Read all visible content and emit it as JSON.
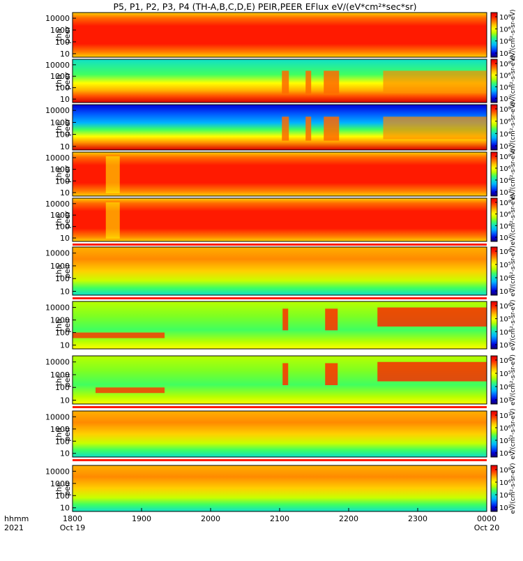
{
  "title": "P5, P1, P2, P3, P4 (TH-A,B,C,D,E) PEIR,PEER EFlux eV/(eV*cm²*sec*sr)",
  "colors": {
    "palette": [
      "#16006e",
      "#0000d8",
      "#0058ff",
      "#00b4ff",
      "#10e0c8",
      "#40ff60",
      "#b8ff00",
      "#ffff00",
      "#ffc000",
      "#ff6a00",
      "#ff1a00",
      "#d80000"
    ],
    "separator_red": "#ff1a00",
    "frame": "#000000"
  },
  "chart_data": {
    "type": "heatmap",
    "time_axis": {
      "label_row1": "hhmm",
      "label_row2": "2021",
      "ticks": [
        "1800",
        "1900",
        "2000",
        "2100",
        "2200",
        "2300",
        "0000"
      ],
      "date_under_first": "Oct 19",
      "date_under_last": "Oct 20",
      "range": [
        "2021-10-19 18:00",
        "2021-10-20 00:00"
      ]
    },
    "energy_axis": {
      "scale": "log",
      "range": [
        5,
        30000
      ],
      "ticks": [
        "10000",
        "1000",
        "100",
        "10"
      ]
    },
    "panels": [
      {
        "probe": "tha",
        "product": "peer",
        "ylabel": [
          "tha",
          "peer"
        ],
        "zticks": [
          "10⁸",
          "10⁶",
          "10⁴",
          "10²"
        ],
        "cbar_label": "eV/(cm²-s-sr-eV)",
        "separator_below": false,
        "features": [
          {
            "band": "high flux across 10–1000 eV, broad red core",
            "t": [
              "1800",
              "0000"
            ]
          }
        ]
      },
      {
        "probe": "thb",
        "product": "peer",
        "ylabel": [
          "thb",
          "peer"
        ],
        "zticks": [
          "10⁸",
          "10⁶",
          "10⁴",
          "10²"
        ],
        "cbar_label": "eV/(cm²-s-sr-eV)",
        "separator_below": false,
        "features": [
          {
            "band": "spikes near 2105 and 2125, burst 2140–2150",
            "t": [
              "2100",
              "2200"
            ]
          }
        ]
      },
      {
        "probe": "thc",
        "product": "peer",
        "ylabel": [
          "thc",
          "peer"
        ],
        "zticks": [
          "10⁸",
          "10⁶",
          "10⁴",
          "10²"
        ],
        "cbar_label": "eV/(cm²-s-sr-eV)",
        "separator_below": false,
        "features": [
          {
            "band": "burst near 2140, enhancement after 2230",
            "t": [
              "2100",
              "0000"
            ]
          }
        ]
      },
      {
        "probe": "thd",
        "product": "peer",
        "ylabel": [
          "thd",
          "peer"
        ],
        "zticks": [
          "10⁸",
          "10⁶",
          "10⁴",
          "10²"
        ],
        "cbar_label": "eV/(cm²-s-sr-eV)",
        "separator_below": false,
        "features": [
          {
            "band": "intense red core; dip near 1835",
            "t": [
              "1800",
              "0000"
            ]
          }
        ]
      },
      {
        "probe": "the",
        "product": "peer",
        "ylabel": [
          "the",
          "peer"
        ],
        "zticks": [
          "10⁸",
          "10⁶",
          "10⁴",
          "10²"
        ],
        "cbar_label": "eV/(cm²-s-sr-eV)",
        "separator_below": true,
        "features": [
          {
            "band": "intense red core; dip near 1835",
            "t": [
              "1800",
              "0000"
            ]
          }
        ]
      },
      {
        "probe": "tha",
        "product": "peir",
        "ylabel": [
          "tha",
          "peir"
        ],
        "zticks": [
          "10⁶",
          "10⁵",
          "10⁴",
          "10³"
        ],
        "cbar_label": "eV/(cm²-s-sr-eV)",
        "separator_below": true,
        "features": [
          {
            "band": "orange/yellow band 1000–10000 eV",
            "t": [
              "1800",
              "0000"
            ]
          }
        ]
      },
      {
        "probe": "thb",
        "product": "peir",
        "ylabel": [
          "thb",
          "peir"
        ],
        "zticks": [
          "10⁶",
          "10⁵",
          "10⁴",
          "10³"
        ],
        "cbar_label": "eV/(cm²-s-sr-eV)",
        "separator_below": false,
        "features": [
          {
            "band": "low-energy streak 1800–1920; bursts 2105, 2140; enhancement after 2225",
            "t": [
              "1800",
              "0000"
            ]
          }
        ]
      },
      {
        "probe": "thc",
        "product": "peir",
        "ylabel": [
          "thc",
          "peir"
        ],
        "zticks": [
          "10⁶",
          "10⁵",
          "10⁴",
          "10³"
        ],
        "cbar_label": "eV/(cm²-s-sr-eV)",
        "separator_below": true,
        "features": [
          {
            "band": "low-energy streak 1820–1910; burst 2140; enhancement after 2225",
            "t": [
              "1800",
              "0000"
            ]
          }
        ]
      },
      {
        "probe": "thd",
        "product": "peir",
        "ylabel": [
          "thd",
          "peir"
        ],
        "zticks": [
          "10⁷",
          "10⁶",
          "10⁵",
          "10⁴"
        ],
        "cbar_label": "eV/(cm²-s-sr-eV)",
        "separator_below": true,
        "features": [
          {
            "band": "orange band 1000–10000 eV, fading later",
            "t": [
              "1800",
              "0000"
            ]
          }
        ]
      },
      {
        "probe": "the",
        "product": "peir",
        "ylabel": [
          "the",
          "peir"
        ],
        "zticks": [
          "10⁸",
          "10⁶",
          "10⁴",
          "10²"
        ],
        "cbar_label": "eV/(cm²-s-sr-eV)",
        "separator_below": false,
        "features": [
          {
            "band": "orange band 1000–10000 eV; dip near 1840",
            "t": [
              "1800",
              "0000"
            ]
          }
        ]
      }
    ]
  }
}
